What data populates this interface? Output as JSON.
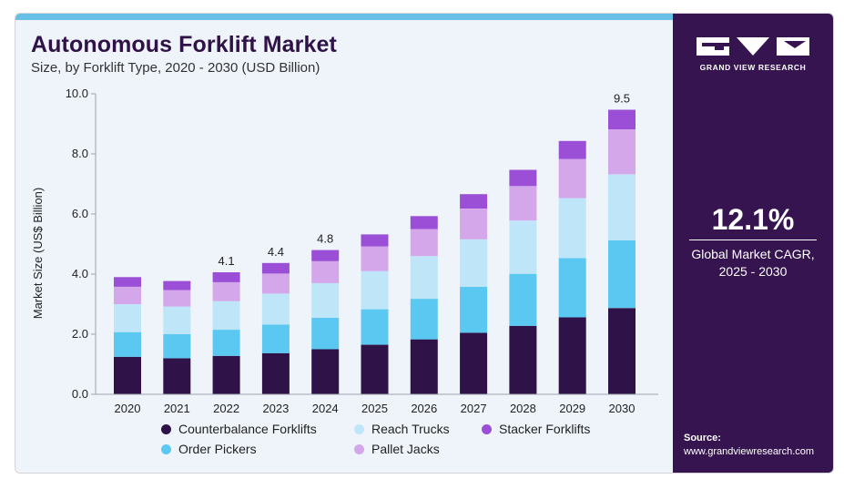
{
  "header": {
    "title": "Autonomous Forklift Market",
    "subtitle": "Size, by Forklift Type, 2020 - 2030 (USD Billion)"
  },
  "sidebar": {
    "brand": "GRAND VIEW RESEARCH",
    "cagr_value": "12.1%",
    "cagr_label_line1": "Global Market CAGR,",
    "cagr_label_line2": "2025 - 2030",
    "source_label": "Source:",
    "source_url": "www.grandviewresearch.com"
  },
  "colors": {
    "panel_bg": "#eef4fa",
    "accent": "#68c0e6",
    "sidebar_bg": "#35144f",
    "title": "#2f1247"
  },
  "chart_data": {
    "type": "bar",
    "stacked": true,
    "categories": [
      "2020",
      "2021",
      "2022",
      "2023",
      "2024",
      "2025",
      "2026",
      "2027",
      "2028",
      "2029",
      "2030"
    ],
    "series": [
      {
        "name": "Counterbalance Forklifts",
        "color": "#2f1247",
        "values": [
          1.25,
          1.2,
          1.28,
          1.37,
          1.5,
          1.65,
          1.83,
          2.05,
          2.28,
          2.56,
          2.87
        ]
      },
      {
        "name": "Order Pickers",
        "color": "#5bc8f2",
        "values": [
          0.82,
          0.8,
          0.87,
          0.95,
          1.05,
          1.18,
          1.35,
          1.53,
          1.73,
          1.97,
          2.25
        ]
      },
      {
        "name": "Reach Trucks",
        "color": "#bfe6f8",
        "values": [
          0.93,
          0.92,
          0.95,
          1.03,
          1.15,
          1.27,
          1.42,
          1.58,
          1.77,
          2.0,
          2.2
        ]
      },
      {
        "name": "Pallet Jacks",
        "color": "#d4a6ea",
        "values": [
          0.58,
          0.55,
          0.63,
          0.67,
          0.73,
          0.82,
          0.9,
          1.02,
          1.15,
          1.3,
          1.5
        ]
      },
      {
        "name": "Stacker Forklifts",
        "color": "#9b4fd6",
        "values": [
          0.32,
          0.3,
          0.33,
          0.35,
          0.37,
          0.4,
          0.43,
          0.48,
          0.54,
          0.6,
          0.65
        ]
      }
    ],
    "total_labels": [
      {
        "category": "2022",
        "text": "4.1"
      },
      {
        "category": "2023",
        "text": "4.4"
      },
      {
        "category": "2024",
        "text": "4.8"
      },
      {
        "category": "2030",
        "text": "9.5"
      }
    ],
    "ylabel": "Market Size (US$ Billion)",
    "xlabel": "",
    "ylim": [
      0,
      10
    ],
    "yticks": [
      "0.0",
      "2.0",
      "4.0",
      "6.0",
      "8.0",
      "10.0"
    ],
    "grid": false,
    "legend_placement": "bottom",
    "legend_order": [
      "Counterbalance Forklifts",
      "Reach Trucks",
      "Stacker Forklifts",
      "Order Pickers",
      "Pallet Jacks"
    ]
  }
}
